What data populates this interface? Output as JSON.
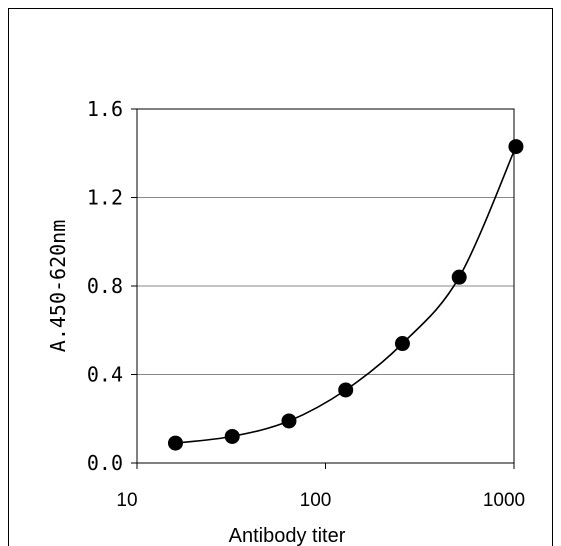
{
  "chart_data": {
    "type": "scatter",
    "title": "",
    "xlabel": "Antibody titer",
    "ylabel": "A.450-620nm",
    "xscale": "log",
    "xlim": [
      10,
      1000
    ],
    "ylim": [
      0,
      1.6
    ],
    "xticks": [
      "10",
      "100",
      "1000"
    ],
    "yticks": [
      "0.0",
      "0.4",
      "0.8",
      "1.2",
      "1.6"
    ],
    "grid": "horizontal",
    "legend": "none",
    "series": [
      {
        "x": [
          16,
          32,
          64,
          128,
          256,
          512,
          1024
        ],
        "y": [
          0.09,
          0.12,
          0.19,
          0.33,
          0.54,
          0.84,
          1.43
        ],
        "marker": "circle",
        "line": "smooth",
        "color": "#000000"
      }
    ]
  }
}
